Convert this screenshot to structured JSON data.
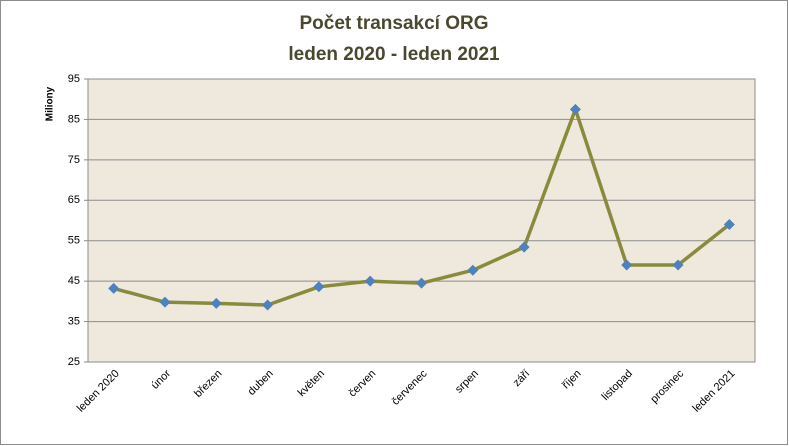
{
  "chart_data": {
    "type": "line",
    "title": "Počet transakcí ORG",
    "subtitle": "leden 2020 - leden 2021",
    "y_label": "Miliony",
    "categories": [
      "leden 2020",
      "únor",
      "březen",
      "duben",
      "květen",
      "červen",
      "červenec",
      "srpen",
      "září",
      "říjen",
      "listopad",
      "prosinec",
      "leden 2021"
    ],
    "series": [
      {
        "name": "Počet transakcí",
        "color": "#8a8a3c",
        "marker_color": "#4f81bd",
        "values": [
          43.2,
          39.8,
          39.5,
          39.1,
          43.6,
          45,
          44.5,
          47.7,
          53.4,
          87.5,
          49,
          49,
          59
        ]
      }
    ],
    "ylim": [
      25,
      95
    ],
    "yticks": [
      25,
      35,
      45,
      55,
      65,
      75,
      85,
      95
    ],
    "grid": true
  }
}
